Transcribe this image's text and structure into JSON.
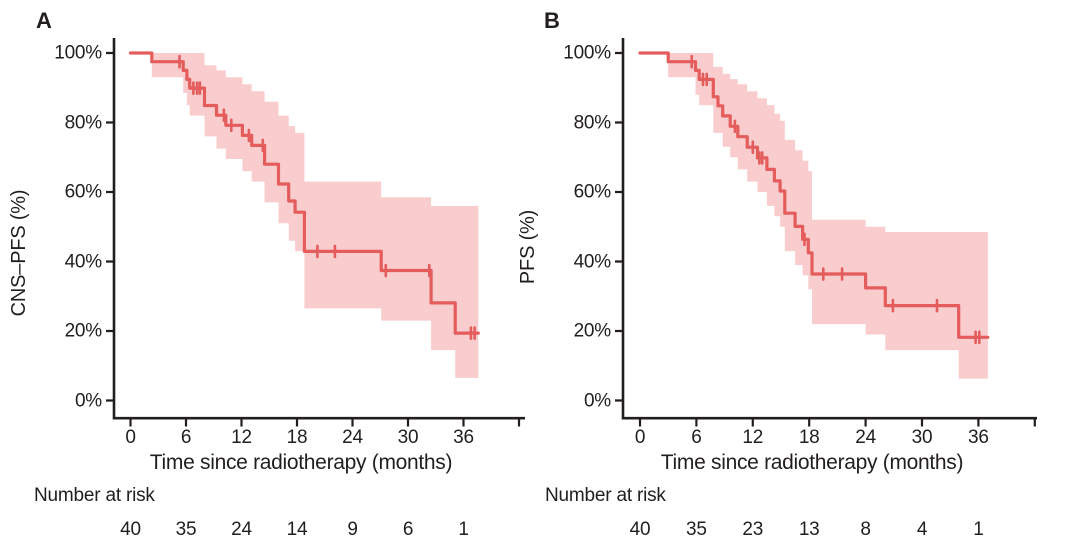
{
  "figure": {
    "type": "kaplan_meier_survival_figure",
    "background": "#ffffff",
    "text_color": "#221e1f",
    "axis_color": "#221e1f",
    "curve_color": "#e55c5c",
    "band_color": "#f9cdcd"
  },
  "chart_data": [
    {
      "type": "line",
      "subtype": "kaplan_meier_step",
      "panel_label": "A",
      "xlabel": "Time since radiotherapy (months)",
      "ylabel": "CNS–PFS (%)",
      "xlim": [
        0,
        42
      ],
      "ylim": [
        0,
        100
      ],
      "grid": false,
      "legend": false,
      "xticks": [
        0,
        6,
        12,
        18,
        24,
        30,
        36
      ],
      "ytick_labels": [
        "100%",
        "80%",
        "60%",
        "40%",
        "20%",
        "0%"
      ],
      "survival_steps": [
        [
          0,
          100
        ],
        [
          2.3,
          97.5
        ],
        [
          5.7,
          95
        ],
        [
          6.1,
          92.4
        ],
        [
          6.4,
          89.9
        ],
        [
          8,
          84.9
        ],
        [
          9.3,
          82.1
        ],
        [
          10.3,
          79.2
        ],
        [
          12.1,
          76.3
        ],
        [
          13.1,
          73.4
        ],
        [
          14.5,
          68
        ],
        [
          16,
          62.3
        ],
        [
          17.1,
          57.4
        ],
        [
          17.8,
          54.2
        ],
        [
          18.8,
          42.9
        ],
        [
          27.1,
          37.4
        ],
        [
          32.5,
          28.1
        ],
        [
          35.1,
          19.4
        ]
      ],
      "curve_end_time": 37.6,
      "censor_marks": [
        [
          5.3,
          97.5
        ],
        [
          6.8,
          89.9
        ],
        [
          7.2,
          89.9
        ],
        [
          7.5,
          89.9
        ],
        [
          10.1,
          82.1
        ],
        [
          10.9,
          79.2
        ],
        [
          12.8,
          76.3
        ],
        [
          14.3,
          73.4
        ],
        [
          20.2,
          42.9
        ],
        [
          22.1,
          42.9
        ],
        [
          27.6,
          37.4
        ],
        [
          32.3,
          37.4
        ],
        [
          36.8,
          19.4
        ],
        [
          37.2,
          19.4
        ]
      ],
      "confidence_band": [
        [
          2.3,
          93,
          100
        ],
        [
          5.7,
          88.5,
          100
        ],
        [
          6.1,
          85,
          100
        ],
        [
          6.4,
          82,
          100
        ],
        [
          8,
          76,
          96.5
        ],
        [
          9.3,
          72.5,
          95
        ],
        [
          10.3,
          69.5,
          93
        ],
        [
          12.1,
          66,
          91
        ],
        [
          13.1,
          63,
          89
        ],
        [
          14.5,
          57,
          86
        ],
        [
          16,
          51,
          82
        ],
        [
          17.1,
          46,
          79
        ],
        [
          17.8,
          43,
          77
        ],
        [
          18.8,
          26.5,
          63
        ],
        [
          27.1,
          23,
          58.5
        ],
        [
          32.5,
          14.5,
          56
        ],
        [
          35.1,
          6.5,
          56
        ]
      ],
      "number_at_risk": {
        "label": "Number at risk",
        "times": [
          0,
          6,
          12,
          18,
          24,
          30,
          36
        ],
        "values": [
          "40",
          "35",
          "24",
          "14",
          "9",
          "6",
          "1"
        ]
      }
    },
    {
      "type": "line",
      "subtype": "kaplan_meier_step",
      "panel_label": "B",
      "xlabel": "Time since radiotherapy (months)",
      "ylabel": "PFS (%)",
      "xlim": [
        0,
        42
      ],
      "ylim": [
        0,
        100
      ],
      "grid": false,
      "legend": false,
      "xticks": [
        0,
        6,
        12,
        18,
        24,
        30,
        36
      ],
      "ytick_labels": [
        "100%",
        "80%",
        "60%",
        "40%",
        "20%",
        "0%"
      ],
      "survival_steps": [
        [
          0,
          100
        ],
        [
          3,
          97.5
        ],
        [
          5.9,
          95
        ],
        [
          6.3,
          92.4
        ],
        [
          7.8,
          87.4
        ],
        [
          8.3,
          84.8
        ],
        [
          8.8,
          81.9
        ],
        [
          9.6,
          78.9
        ],
        [
          10.4,
          75.9
        ],
        [
          11.4,
          72.9
        ],
        [
          12.5,
          69.8
        ],
        [
          13.5,
          66.5
        ],
        [
          14.3,
          63.2
        ],
        [
          14.9,
          60.3
        ],
        [
          15.4,
          53.9
        ],
        [
          16.5,
          50.1
        ],
        [
          17.3,
          46.4
        ],
        [
          17.9,
          42.5
        ],
        [
          18.3,
          36.4
        ],
        [
          24,
          32.4
        ],
        [
          26.1,
          27.3
        ],
        [
          33.9,
          18.2
        ]
      ],
      "curve_end_time": 37.0,
      "censor_marks": [
        [
          5.5,
          97.5
        ],
        [
          6.7,
          92.4
        ],
        [
          7.1,
          92.4
        ],
        [
          10.1,
          78.9
        ],
        [
          12,
          72.9
        ],
        [
          12.7,
          69.8
        ],
        [
          13,
          69.8
        ],
        [
          17.5,
          46.4
        ],
        [
          19.5,
          36.4
        ],
        [
          21.5,
          36.4
        ],
        [
          26.9,
          27.3
        ],
        [
          31.6,
          27.3
        ],
        [
          35.7,
          18.2
        ],
        [
          36.1,
          18.2
        ]
      ],
      "confidence_band": [
        [
          3,
          93,
          100
        ],
        [
          5.9,
          88,
          100
        ],
        [
          6.3,
          85,
          100
        ],
        [
          7.8,
          77,
          96
        ],
        [
          8.8,
          73,
          94
        ],
        [
          9.6,
          70,
          92.5
        ],
        [
          10.4,
          66.5,
          91
        ],
        [
          11.4,
          63,
          89
        ],
        [
          12.5,
          60,
          87
        ],
        [
          13.5,
          56,
          85
        ],
        [
          14.3,
          53,
          82.5
        ],
        [
          14.9,
          50,
          80.5
        ],
        [
          15.4,
          43,
          75
        ],
        [
          16.5,
          39,
          72
        ],
        [
          17.3,
          36,
          69
        ],
        [
          17.9,
          32,
          66
        ],
        [
          18.3,
          22,
          52
        ],
        [
          24,
          19,
          50
        ],
        [
          26.1,
          14.5,
          48.5
        ],
        [
          33.9,
          6.3,
          48.5
        ]
      ],
      "number_at_risk": {
        "label": "Number at risk",
        "times": [
          0,
          6,
          12,
          18,
          24,
          30,
          36
        ],
        "values": [
          "40",
          "35",
          "23",
          "13",
          "8",
          "4",
          "1"
        ]
      }
    }
  ]
}
